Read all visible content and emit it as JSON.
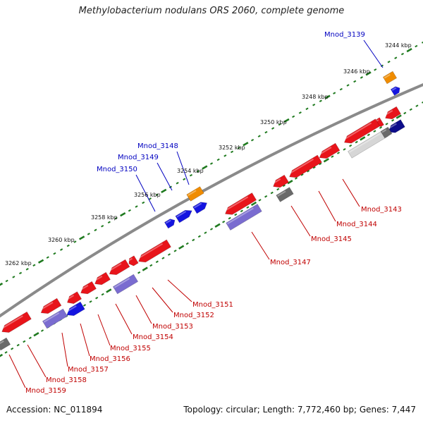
{
  "title": "Methylobacterium nodulans ORS 2060, complete genome",
  "footer": {
    "accession": "Accession: NC_011894",
    "summary": "Topology: circular; Length: 7,772,460 bp; Genes: 7,447"
  },
  "colors": {
    "backbone": "#7a7a7a",
    "tick": "#1f7a1f",
    "red_gene": "#e8141a",
    "blue_gene": "#1414e0",
    "purple_gene": "#7a6cd0",
    "orange_gene": "#f08c00",
    "gray_gene": "#6a6a6a",
    "lightgray_gene": "#c8c8c8",
    "navy_gene": "#0d0d8a",
    "red_label": "#c00000",
    "blue_label": "#0000c0"
  },
  "scale_labels": [
    "3244 kbp",
    "3246 kbp",
    "3248 kbp",
    "3250 kbp",
    "3252 kbp",
    "3254 kbp",
    "3256 kbp",
    "3258 kbp",
    "3260 kbp",
    "3262 kbp"
  ],
  "labels_top": [
    "Mnod_3139",
    "Mnod_3148",
    "Mnod_3149",
    "Mnod_3150"
  ],
  "labels_bottom": [
    "Mnod_3143",
    "Mnod_3144",
    "Mnod_3145",
    "Mnod_3147",
    "Mnod_3151",
    "Mnod_3152",
    "Mnod_3153",
    "Mnod_3154",
    "Mnod_3155",
    "Mnod_3156",
    "Mnod_3157",
    "Mnod_3158",
    "Mnod_3159"
  ]
}
